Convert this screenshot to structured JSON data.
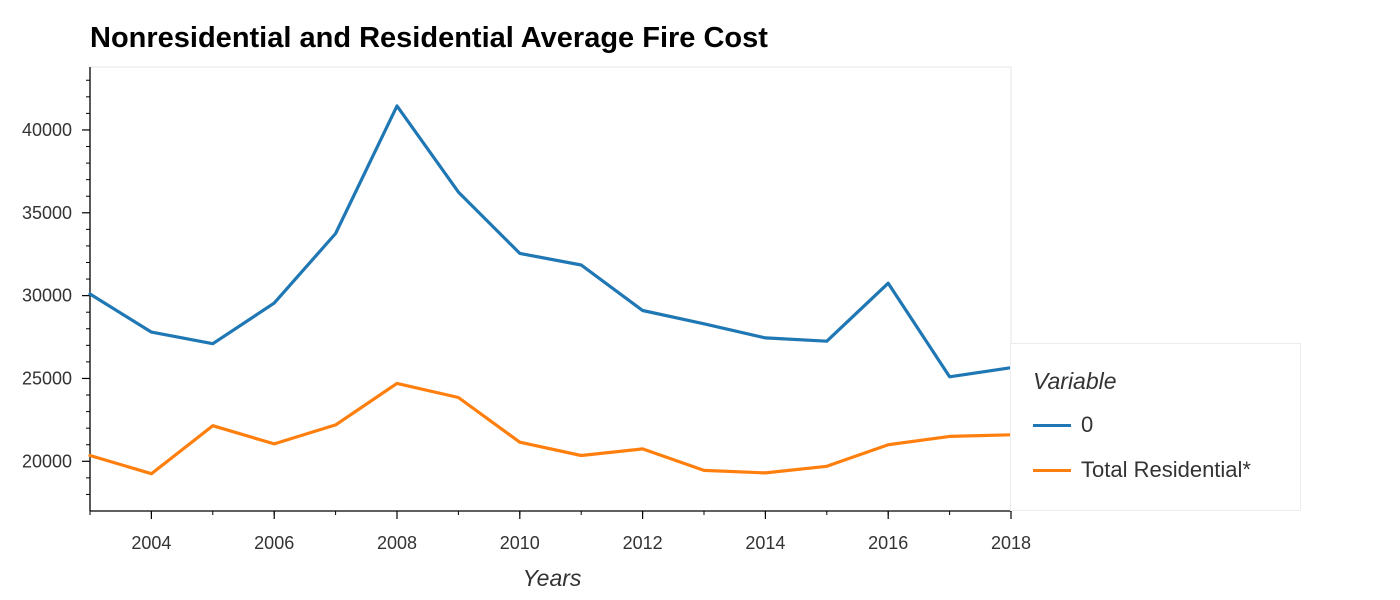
{
  "chart_data": {
    "type": "line",
    "title": "Nonresidential and Residential Average Fire Cost",
    "xlabel": "Years",
    "ylabel": "",
    "x": [
      2003,
      2004,
      2005,
      2006,
      2007,
      2008,
      2009,
      2010,
      2011,
      2012,
      2013,
      2014,
      2015,
      2016,
      2017,
      2018
    ],
    "xlim": [
      2003,
      2018
    ],
    "ylim": [
      17000,
      43800
    ],
    "x_ticks": [
      "2004",
      "2006",
      "2008",
      "2010",
      "2012",
      "2014",
      "2016",
      "2018"
    ],
    "y_ticks": [
      "20000",
      "25000",
      "30000",
      "35000",
      "40000"
    ],
    "grid": false,
    "legend_title": "Variable",
    "legend_position": "right",
    "series": [
      {
        "name": "0",
        "color": "#1f77b4",
        "values": [
          30100,
          27800,
          27100,
          29550,
          33750,
          41450,
          36250,
          32550,
          31850,
          29100,
          28300,
          27450,
          27250,
          30750,
          25100,
          25650
        ]
      },
      {
        "name": "Total Residential*",
        "color": "#ff7f0e",
        "values": [
          20350,
          19250,
          22150,
          21050,
          22200,
          24700,
          23850,
          21150,
          20350,
          20750,
          19450,
          19300,
          19700,
          21000,
          21500,
          21600
        ]
      }
    ]
  }
}
